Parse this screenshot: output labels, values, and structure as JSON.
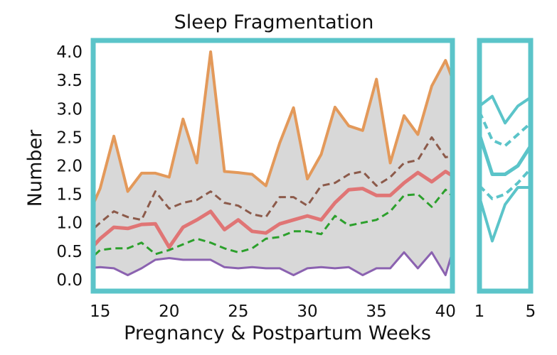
{
  "chart_data": {
    "type": "line",
    "title": "Sleep Fragmentation",
    "xlabel": "Pregnancy & Postpartum Weeks",
    "ylabel": "Number",
    "ylim": [
      -0.2,
      4.2
    ],
    "yticks": [
      "0.0",
      "0.5",
      "1.0",
      "1.5",
      "2.0",
      "2.5",
      "3.0",
      "3.5",
      "4.0"
    ],
    "grid": false,
    "frame_color": "#5bc4c9",
    "band_color": "#d8d8d8",
    "panels": [
      {
        "name": "pregnancy",
        "xlim": [
          14.5,
          40.5
        ],
        "xticks": [
          "15",
          "20",
          "25",
          "30",
          "35",
          "40"
        ],
        "x": [
          14,
          15,
          16,
          17,
          18,
          19,
          20,
          21,
          22,
          23,
          24,
          25,
          26,
          27,
          28,
          29,
          30,
          31,
          32,
          33,
          34,
          35,
          36,
          37,
          38,
          39,
          40,
          41
        ],
        "series": [
          {
            "style": "upper",
            "color": "#e3995a",
            "width": 4,
            "dash": "",
            "values": [
              1.05,
              1.6,
              2.52,
              1.55,
              1.87,
              1.87,
              1.8,
              2.82,
              2.05,
              4.0,
              1.9,
              1.88,
              1.85,
              1.65,
              2.4,
              3.02,
              1.77,
              2.2,
              3.03,
              2.7,
              2.62,
              3.52,
              2.05,
              2.88,
              2.55,
              3.4,
              3.85,
              3.2
            ]
          },
          {
            "style": "p75",
            "color": "#8c5a4a",
            "width": 3,
            "dash": "10 6",
            "values": [
              0.78,
              1.0,
              1.2,
              1.1,
              1.05,
              1.55,
              1.25,
              1.35,
              1.4,
              1.55,
              1.35,
              1.3,
              1.15,
              1.1,
              1.45,
              1.45,
              1.3,
              1.65,
              1.7,
              1.85,
              1.9,
              1.65,
              1.8,
              2.05,
              2.1,
              2.5,
              2.15,
              2.2
            ]
          },
          {
            "style": "median",
            "color": "#e07575",
            "width": 5,
            "dash": "",
            "values": [
              0.45,
              0.72,
              0.92,
              0.9,
              0.97,
              0.98,
              0.57,
              0.92,
              1.05,
              1.2,
              0.88,
              1.05,
              0.85,
              0.82,
              0.98,
              1.05,
              1.12,
              1.05,
              1.35,
              1.58,
              1.6,
              1.48,
              1.48,
              1.7,
              1.88,
              1.72,
              1.9,
              1.75
            ]
          },
          {
            "style": "p25",
            "color": "#2ca02c",
            "width": 3,
            "dash": "10 6",
            "values": [
              0.3,
              0.52,
              0.55,
              0.55,
              0.65,
              0.45,
              0.52,
              0.62,
              0.72,
              0.65,
              0.55,
              0.48,
              0.55,
              0.72,
              0.75,
              0.85,
              0.85,
              0.8,
              1.12,
              0.95,
              1.0,
              1.05,
              1.2,
              1.48,
              1.5,
              1.28,
              1.58,
              1.35
            ]
          },
          {
            "style": "lower",
            "color": "#8b62b0",
            "width": 3,
            "dash": "",
            "values": [
              0.2,
              0.22,
              0.2,
              0.08,
              0.2,
              0.35,
              0.38,
              0.35,
              0.35,
              0.35,
              0.22,
              0.2,
              0.22,
              0.2,
              0.2,
              0.08,
              0.2,
              0.22,
              0.2,
              0.22,
              0.08,
              0.2,
              0.2,
              0.48,
              0.2,
              0.48,
              0.08,
              0.9
            ]
          }
        ]
      },
      {
        "name": "postpartum",
        "xlim": [
          1,
          5
        ],
        "xticks": [
          "1",
          "5"
        ],
        "x": [
          1,
          2,
          3,
          4,
          5
        ],
        "series": [
          {
            "style": "upper",
            "color": "#5bc4c9",
            "width": 4,
            "dash": "",
            "values": [
              3.05,
              3.22,
              2.75,
              3.05,
              3.2
            ]
          },
          {
            "style": "p75",
            "color": "#5bc4c9",
            "width": 4,
            "dash": "10 6",
            "values": [
              2.95,
              2.45,
              2.35,
              2.55,
              2.75
            ]
          },
          {
            "style": "median",
            "color": "#5bc4c9",
            "width": 5,
            "dash": "",
            "values": [
              2.55,
              1.85,
              1.85,
              2.0,
              2.35
            ]
          },
          {
            "style": "p25",
            "color": "#5bc4c9",
            "width": 4,
            "dash": "10 6",
            "values": [
              1.65,
              1.42,
              1.5,
              1.7,
              1.95
            ]
          },
          {
            "style": "lower",
            "color": "#5bc4c9",
            "width": 4,
            "dash": "",
            "values": [
              1.45,
              0.68,
              1.32,
              1.62,
              1.62
            ]
          }
        ]
      }
    ]
  }
}
